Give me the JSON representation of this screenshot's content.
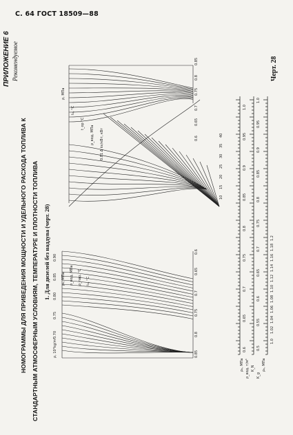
{
  "header": {
    "page_ref": "С. 64 ГОСТ 18509—88"
  },
  "appendix": {
    "label": "ПРИЛОЖЕНИЕ 6",
    "status": "Рекомендуемое"
  },
  "title": {
    "line1": "НОМОГРАММЫ ДЛЯ ПРИВЕДЕНИЯ МОЩНОСТИ И УДЕЛЬНОГО РАСХОДА ТОПЛИВА К",
    "line2": "СТАНДАРТНЫМ АТМОСФЕРНЫМ УСЛОВИЯМ, ТЕМПЕРАТУРЕ И ПЛОТНОСТИ ТОПЛИВА"
  },
  "section": {
    "heading": "1. Для дизелей без наддува (черт. 28)"
  },
  "drawing": {
    "label": "Черт. 28"
  },
  "nomogram_left": {
    "axis_values": [
      "0.85",
      "0.8",
      "0.75",
      "0.7",
      "0.65",
      "0.6"
    ],
    "rho_labels": [
      "ρ, 10³kg/m³",
      "0.70",
      "0.75",
      "0.80",
      "0.85",
      "0.90"
    ],
    "axis_titles": [
      "ρ₀, МПа",
      "ρ_вод, МПа",
      "ρ_пар, °C",
      "t₀, °C"
    ]
  },
  "nomogram_right": {
    "axis_values": [
      "0.85",
      "0.8",
      "0.75",
      "0.7",
      "0.65",
      "0.6"
    ],
    "axis_titles": [
      "ρ, МПа",
      "t₀, °C",
      "t_ор °C",
      "ρ_вод, МПа",
      "0.81 Δ kv/кВт, кВт"
    ],
    "temperature_marks": [
      "10",
      "15",
      "20",
      "25",
      "30",
      "35",
      "40"
    ]
  },
  "scales": {
    "a1_ticks": [
      "1.0",
      "0.95",
      "0.9",
      "0.85",
      "0.8",
      "0.75",
      "0.7",
      "0.65",
      "0.6"
    ],
    "a2_ticks": [
      "1.0",
      "0.95",
      "0.9",
      "0.85",
      "0.8",
      "0.75",
      "0.7",
      "0.65",
      "0.6",
      "0.55",
      "0.5"
    ],
    "a3_ticks": [
      "1.2",
      "1.18",
      "1.16",
      "1.14",
      "1.12",
      "1.10",
      "1.08",
      "1.06",
      "1.04",
      "1.02",
      "1.0"
    ],
    "labels": [
      "ρ₀, МПа",
      "ρ_вод, т/м³",
      "K_N",
      "K_g",
      "ρ₀, МПа"
    ]
  }
}
